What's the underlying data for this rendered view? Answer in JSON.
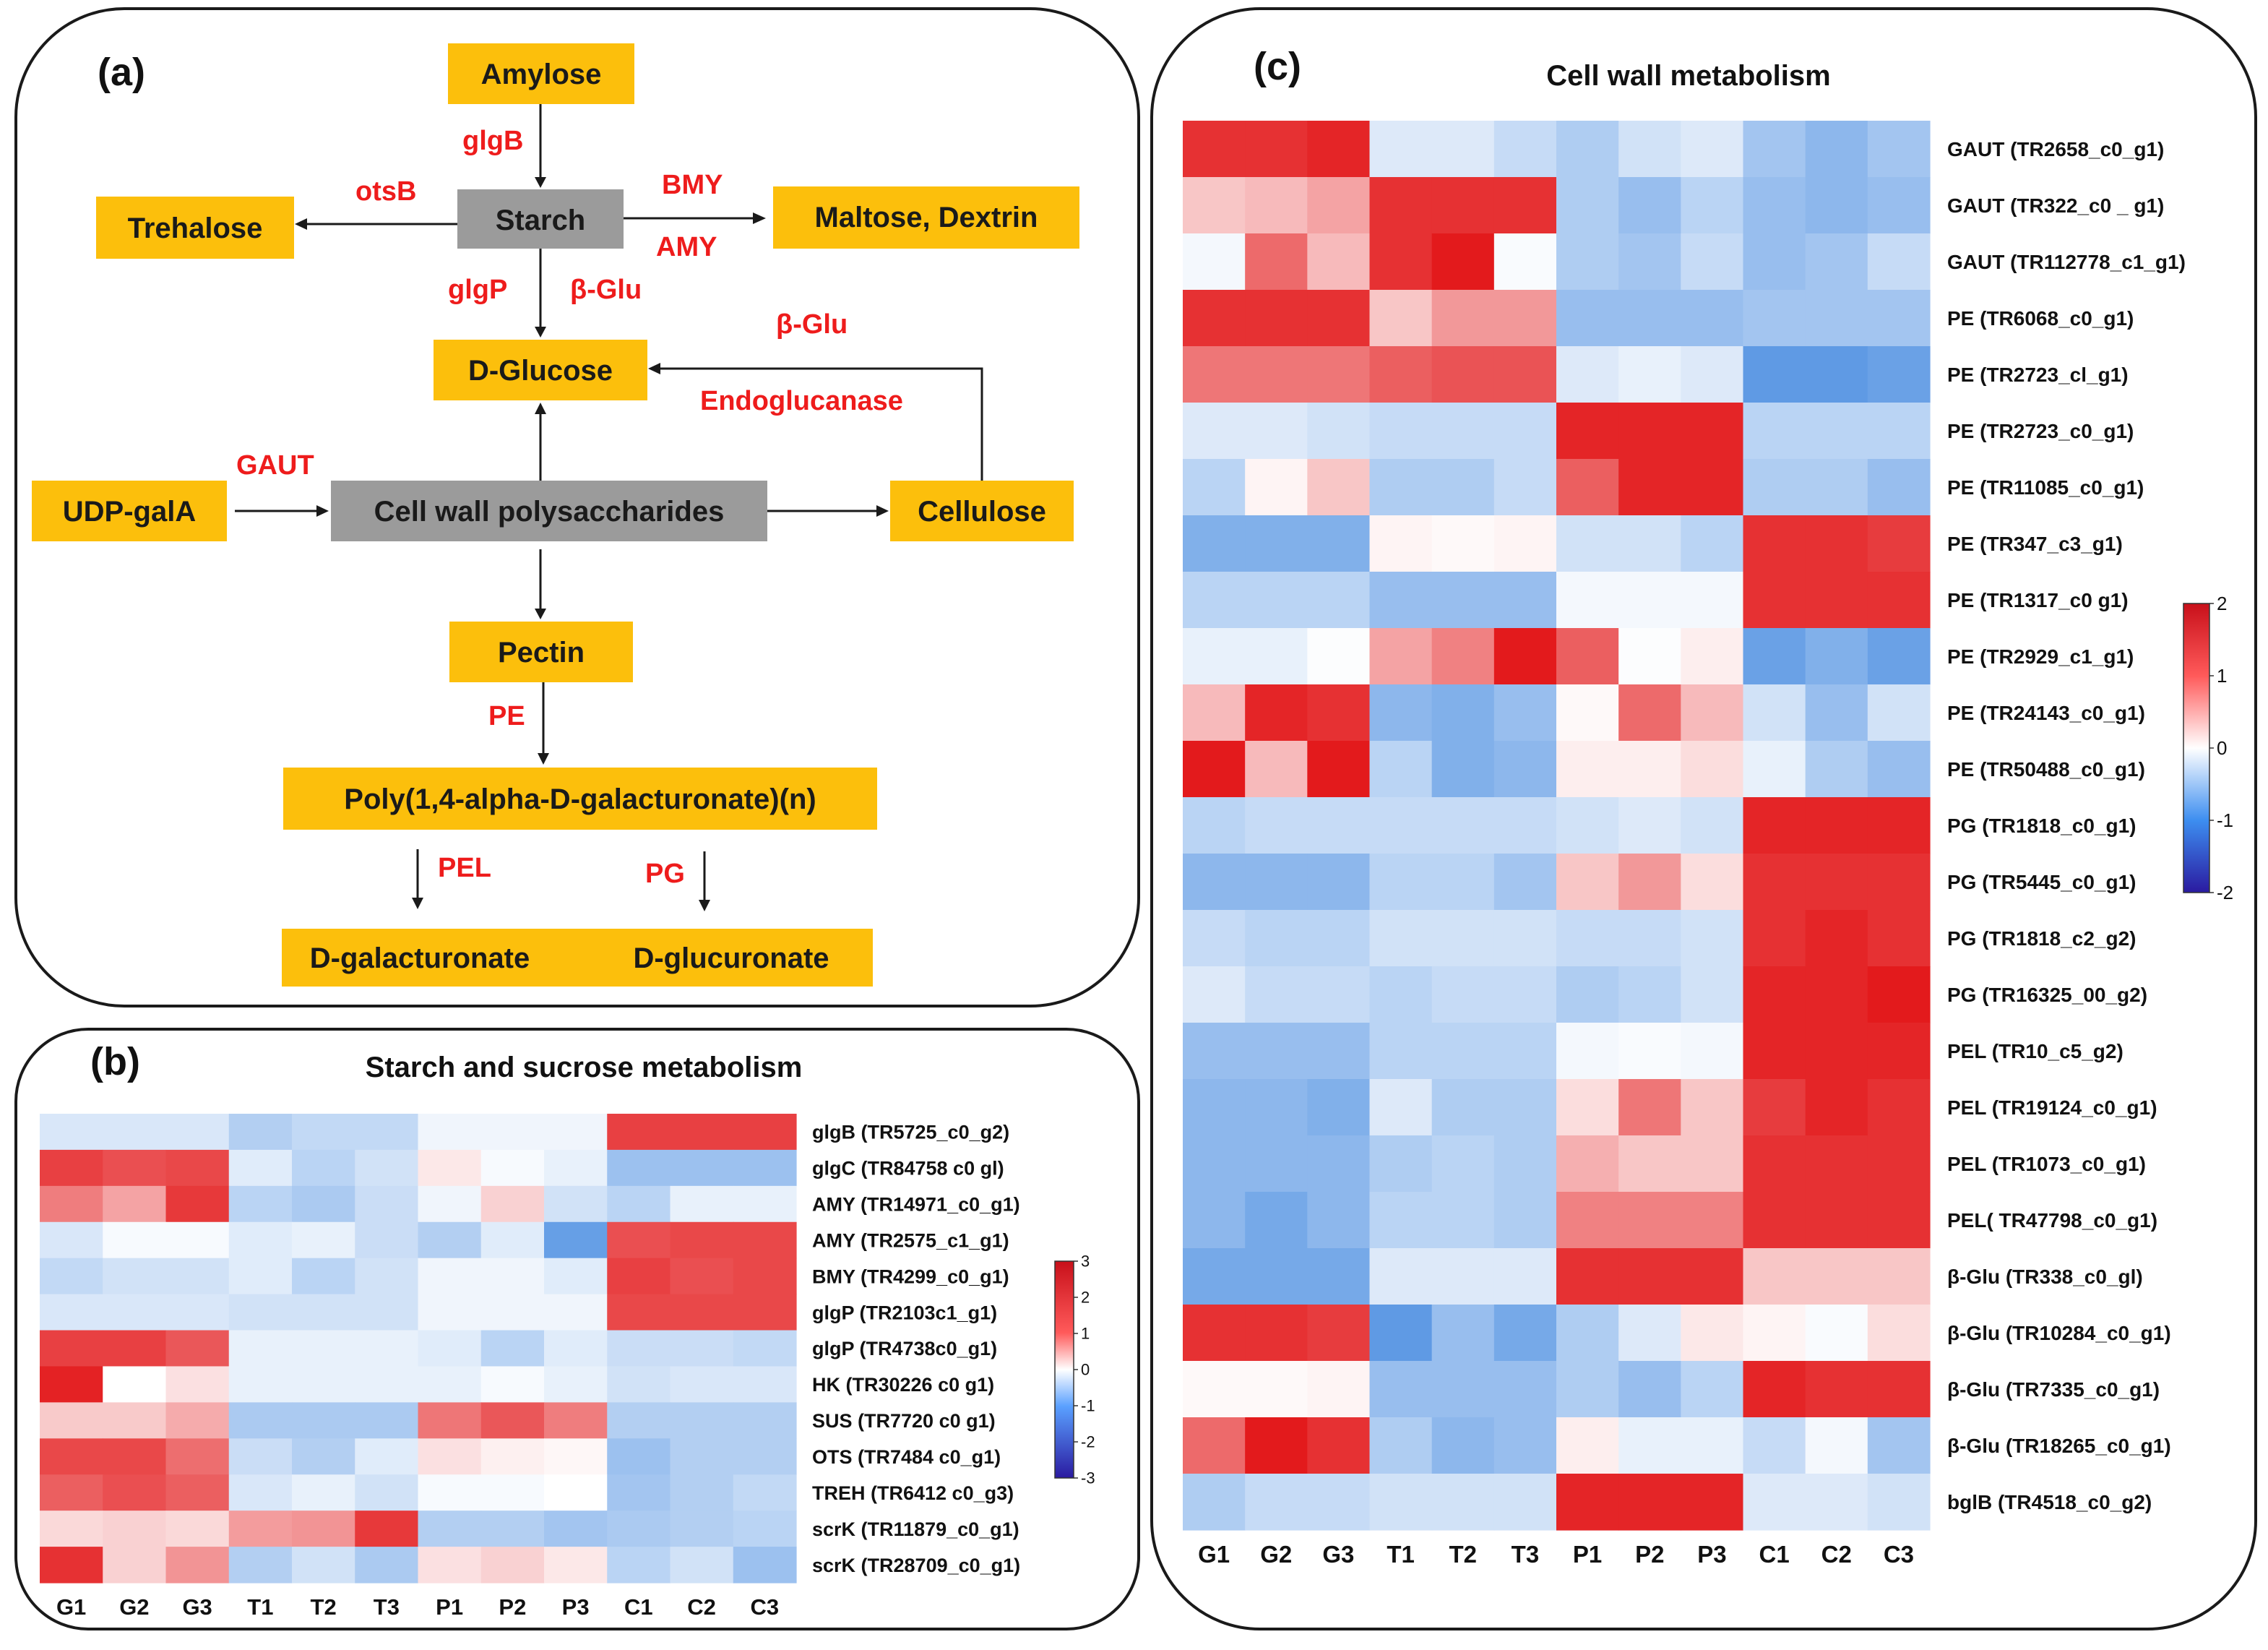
{
  "panel_a": {
    "label": "(a)",
    "boxes": {
      "amylose": "Amylose",
      "starch": "Starch",
      "trehalose": "Trehalose",
      "maltose": "Maltose, Dextrin",
      "dglucose": "D-Glucose",
      "udp": "UDP-galA",
      "cwp": "Cell wall  polysaccharides",
      "cellulose": "Cellulose",
      "pectin": "Pectin",
      "poly": "Poly(1,4-alpha-D-galacturonate)(n)",
      "dgalact": "D-galacturonate",
      "dglucur": "D-glucuronate"
    },
    "enzymes": {
      "glgB": "glgB",
      "otsB": "otsB",
      "BMY": "BMY",
      "AMY": "AMY",
      "glgP": "glgP",
      "bglu1": "β-Glu",
      "bglu2": "β-Glu",
      "endo": "Endoglucanase",
      "GAUT": "GAUT",
      "PE": "PE",
      "PEL": "PEL",
      "PG": "PG"
    }
  },
  "panel_b": {
    "label": "(b)",
    "title": "Starch and sucrose metabolism"
  },
  "panel_c": {
    "label": "(c)",
    "title": "Cell wall  metabolism"
  },
  "colors": {
    "high": "#e31a1c",
    "mid": "#ffffff",
    "low": "#1a6fd9",
    "box_yellow": "#fcbf0c",
    "box_gray": "#9b9b9b",
    "enzyme_red": "#ee1c1c"
  },
  "chart_data": [
    {
      "type": "heatmap",
      "title": "Starch and sucrose metabolism",
      "columns": [
        "G1",
        "G2",
        "G3",
        "T1",
        "T2",
        "T3",
        "P1",
        "P2",
        "P3",
        "C1",
        "C2",
        "C3"
      ],
      "rows": [
        "glgB (TR5725_c0_g2)",
        "glgC (TR84758 c0 gl)",
        "AMY (TR14971_c0_g1)",
        "AMY (TR2575_c1_g1)",
        "BMY (TR4299_c0_g1)",
        "glgP (TR2103c1_g1)",
        "glgP (TR4738c0_g1)",
        "HK (TR30226 c0 g1)",
        "SUS (TR7720 c0 g1)",
        "OTS (TR7484 c0_g1)",
        "TREH (TR6412 c0_g3)",
        "scrK (TR11879_c0_g1)",
        "scrK (TR28709_c0_g1)"
      ],
      "values": [
        [
          -0.5,
          -0.5,
          -0.5,
          -1.0,
          -0.8,
          -0.8,
          -0.2,
          -0.2,
          -0.2,
          2.5,
          2.5,
          2.5
        ],
        [
          2.5,
          2.3,
          2.4,
          -0.4,
          -0.9,
          -0.6,
          0.3,
          -0.1,
          -0.3,
          -1.3,
          -1.3,
          -1.3
        ],
        [
          1.7,
          1.2,
          2.6,
          -0.9,
          -1.1,
          -0.7,
          -0.2,
          0.6,
          -0.6,
          -0.9,
          -0.3,
          -0.3
        ],
        [
          -0.5,
          -0.1,
          -0.1,
          -0.4,
          -0.3,
          -0.7,
          -1.0,
          -0.4,
          -2.0,
          2.3,
          2.4,
          2.4
        ],
        [
          -0.8,
          -0.6,
          -0.6,
          -0.4,
          -0.9,
          -0.6,
          -0.2,
          -0.2,
          -0.4,
          2.5,
          2.3,
          2.4
        ],
        [
          -0.5,
          -0.5,
          -0.5,
          -0.6,
          -0.6,
          -0.6,
          -0.2,
          -0.2,
          -0.2,
          2.4,
          2.4,
          2.4
        ],
        [
          2.5,
          2.5,
          2.2,
          -0.3,
          -0.3,
          -0.3,
          -0.4,
          -0.9,
          -0.4,
          -0.7,
          -0.7,
          -0.8
        ],
        [
          2.9,
          0.0,
          0.4,
          -0.3,
          -0.3,
          -0.3,
          -0.3,
          -0.1,
          -0.3,
          -0.6,
          -0.5,
          -0.5
        ],
        [
          0.7,
          0.7,
          1.1,
          -1.1,
          -1.1,
          -1.1,
          1.8,
          2.2,
          1.7,
          -1.0,
          -1.0,
          -1.0
        ],
        [
          2.4,
          2.4,
          1.9,
          -0.7,
          -1.0,
          -0.4,
          0.4,
          0.2,
          0.1,
          -1.3,
          -1.0,
          -1.0
        ],
        [
          2.1,
          2.3,
          2.1,
          -0.5,
          -0.3,
          -0.6,
          -0.1,
          -0.1,
          0.0,
          -1.2,
          -1.0,
          -0.8
        ],
        [
          0.5,
          0.6,
          0.5,
          1.3,
          1.4,
          2.6,
          -1.0,
          -1.0,
          -1.2,
          -1.1,
          -1.0,
          -0.9
        ],
        [
          2.7,
          0.6,
          1.4,
          -1.0,
          -0.6,
          -1.1,
          0.4,
          0.6,
          0.3,
          -0.9,
          -0.6,
          -1.3
        ]
      ],
      "colorbar": {
        "min": -3,
        "max": 3,
        "ticks": [
          3,
          2,
          1,
          0,
          -1,
          -2,
          -3
        ]
      }
    },
    {
      "type": "heatmap",
      "title": "Cell wall  metabolism",
      "columns": [
        "G1",
        "G2",
        "G3",
        "T1",
        "T2",
        "T3",
        "P1",
        "P2",
        "P3",
        "C1",
        "C2",
        "C3"
      ],
      "rows": [
        "GAUT (TR2658_c0_g1)",
        "GAUT (TR322_c0 _ g1)",
        "GAUT (TR112778_c1_g1)",
        "PE (TR6068_c0_g1)",
        "PE (TR2723_cl_g1)",
        "PE (TR2723_c0_g1)",
        "PE (TR11085_c0_g1)",
        "PE (TR347_c3_g1)",
        "PE (TR1317_c0 g1)",
        "PE (TR2929_c1_g1)",
        "PE (TR24143_c0_g1)",
        "PE (TR50488_c0_g1)",
        "PG (TR1818_c0_g1)",
        "PG (TR5445_c0_g1)",
        "PG (TR1818_c2_g2)",
        "PG (TR16325_00_g2)",
        "PEL (TR10_c5_g2)",
        "PEL (TR19124_c0_g1)",
        "PEL (TR1073_c0_g1)",
        "PEL( TR47798_c0_g1)",
        "β-Glu (TR338_c0_gl)",
        "β-Glu (TR10284_c0_g1)",
        "β-Glu (TR7335_c0_g1)",
        "β-Glu (TR18265_c0_g1)",
        "bglB (TR4518_c0_g2)"
      ],
      "values": [
        [
          1.8,
          1.8,
          1.9,
          -0.3,
          -0.3,
          -0.5,
          -0.7,
          -0.4,
          -0.3,
          -0.8,
          -1.0,
          -0.8
        ],
        [
          0.5,
          0.6,
          0.8,
          1.8,
          1.8,
          1.8,
          -0.7,
          -0.9,
          -0.6,
          -0.9,
          -1.0,
          -0.9
        ],
        [
          -0.1,
          1.3,
          0.6,
          1.8,
          2.0,
          -0.05,
          -0.7,
          -0.8,
          -0.5,
          -0.9,
          -0.8,
          -0.5
        ],
        [
          1.8,
          1.8,
          1.8,
          0.5,
          0.9,
          0.9,
          -0.9,
          -0.9,
          -0.9,
          -0.8,
          -0.8,
          -0.8
        ],
        [
          1.2,
          1.2,
          1.2,
          1.4,
          1.5,
          1.5,
          -0.3,
          -0.2,
          -0.3,
          -1.4,
          -1.4,
          -1.3
        ],
        [
          -0.3,
          -0.3,
          -0.4,
          -0.5,
          -0.5,
          -0.5,
          1.9,
          1.9,
          1.9,
          -0.6,
          -0.6,
          -0.6
        ],
        [
          -0.6,
          0.1,
          0.5,
          -0.7,
          -0.7,
          -0.5,
          1.4,
          1.9,
          1.9,
          -0.7,
          -0.7,
          -0.9
        ],
        [
          -1.1,
          -1.1,
          -1.1,
          0.1,
          0.05,
          0.1,
          -0.4,
          -0.4,
          -0.6,
          1.8,
          1.8,
          1.7
        ],
        [
          -0.6,
          -0.6,
          -0.6,
          -0.9,
          -0.9,
          -0.9,
          -0.1,
          -0.1,
          -0.1,
          1.8,
          1.8,
          1.8
        ],
        [
          -0.2,
          -0.2,
          -0.03,
          0.8,
          1.1,
          2.0,
          1.4,
          -0.03,
          0.15,
          -1.3,
          -1.1,
          -1.3
        ],
        [
          0.6,
          1.9,
          1.8,
          -1.0,
          -1.1,
          -0.9,
          0.05,
          1.3,
          0.6,
          -0.4,
          -0.9,
          -0.4
        ],
        [
          2.0,
          0.6,
          2.0,
          -0.6,
          -1.1,
          -1.0,
          0.15,
          0.15,
          0.3,
          -0.2,
          -0.7,
          -0.9
        ],
        [
          -0.6,
          -0.5,
          -0.5,
          -0.5,
          -0.5,
          -0.5,
          -0.4,
          -0.3,
          -0.4,
          1.9,
          1.9,
          1.9
        ],
        [
          -1.0,
          -1.0,
          -1.0,
          -0.6,
          -0.6,
          -0.8,
          0.5,
          0.9,
          0.3,
          1.8,
          1.8,
          1.8
        ],
        [
          -0.5,
          -0.6,
          -0.6,
          -0.4,
          -0.4,
          -0.4,
          -0.5,
          -0.5,
          -0.4,
          1.8,
          1.9,
          1.8
        ],
        [
          -0.3,
          -0.5,
          -0.5,
          -0.6,
          -0.5,
          -0.5,
          -0.7,
          -0.6,
          -0.4,
          1.9,
          1.9,
          2.0
        ],
        [
          -0.9,
          -0.9,
          -0.9,
          -0.6,
          -0.6,
          -0.6,
          -0.1,
          -0.05,
          -0.1,
          1.9,
          1.9,
          1.9
        ],
        [
          -1.0,
          -1.0,
          -1.1,
          -0.3,
          -0.7,
          -0.7,
          0.3,
          1.2,
          0.5,
          1.7,
          1.9,
          1.8
        ],
        [
          -1.0,
          -1.0,
          -1.0,
          -0.7,
          -0.6,
          -0.7,
          0.7,
          0.5,
          0.5,
          1.8,
          1.8,
          1.8
        ],
        [
          -1.0,
          -1.2,
          -1.0,
          -0.6,
          -0.6,
          -0.7,
          1.1,
          1.1,
          1.1,
          1.8,
          1.8,
          1.8
        ],
        [
          -1.2,
          -1.2,
          -1.2,
          -0.3,
          -0.3,
          -0.3,
          1.8,
          1.8,
          1.8,
          0.5,
          0.5,
          0.5
        ],
        [
          1.8,
          1.8,
          1.7,
          -1.4,
          -0.9,
          -1.2,
          -0.7,
          -0.3,
          0.2,
          0.1,
          -0.05,
          0.3
        ],
        [
          0.05,
          0.05,
          0.1,
          -0.9,
          -0.9,
          -0.9,
          -0.7,
          -0.9,
          -0.6,
          1.9,
          1.8,
          1.8
        ],
        [
          1.3,
          2.0,
          1.8,
          -0.7,
          -1.0,
          -0.9,
          0.15,
          -0.2,
          -0.2,
          -0.5,
          -0.1,
          -0.8
        ],
        [
          -0.7,
          -0.5,
          -0.5,
          -0.4,
          -0.4,
          -0.4,
          1.9,
          1.9,
          1.9,
          -0.3,
          -0.3,
          -0.4
        ]
      ],
      "colorbar": {
        "min": -2,
        "max": 2,
        "ticks": [
          2,
          1,
          0,
          -1,
          -2
        ]
      }
    }
  ]
}
